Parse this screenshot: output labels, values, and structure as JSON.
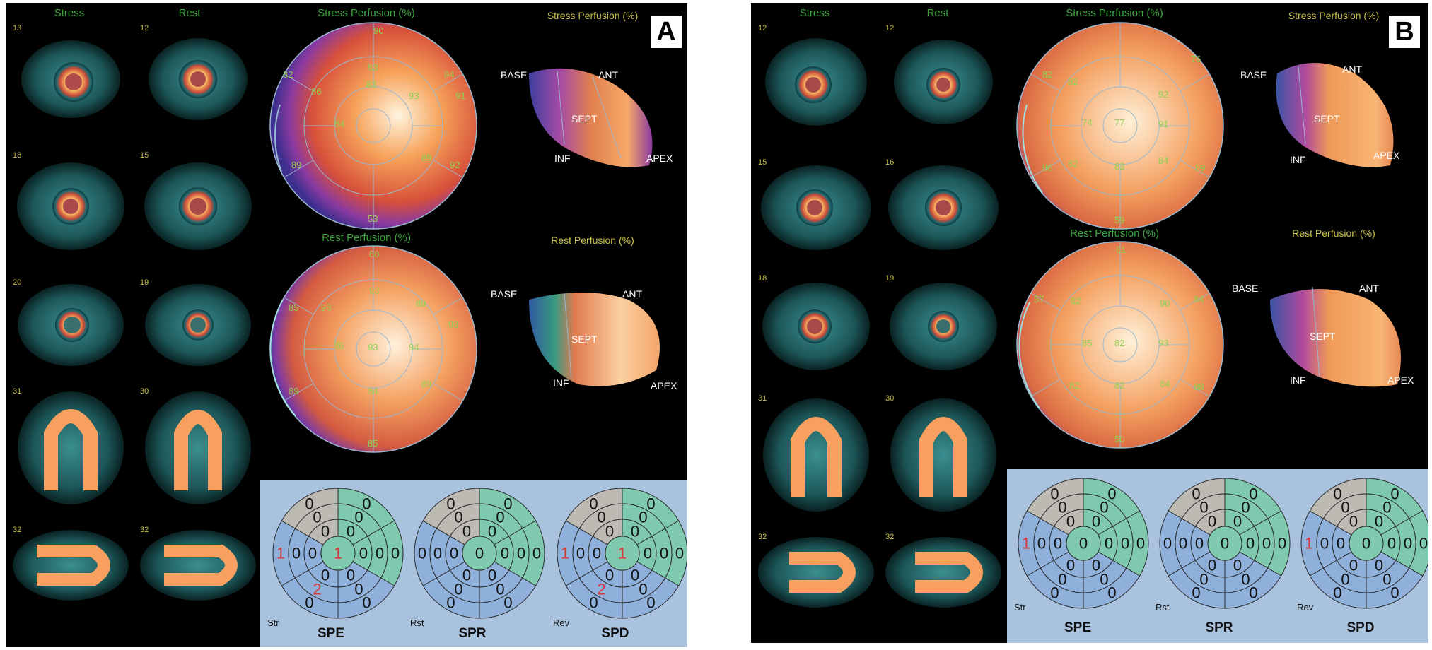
{
  "panels": [
    {
      "letter": "A",
      "columns": {
        "stress": "Stress",
        "rest": "Rest"
      },
      "slice_numbers": {
        "stress": [
          "13",
          "18",
          "20",
          "31",
          "32"
        ],
        "rest": [
          "12",
          "15",
          "19",
          "30",
          "32"
        ]
      },
      "bullseye": {
        "stress_title": "Stress Perfusion (%)",
        "rest_title": "Rest Perfusion (%)",
        "stress_values": [
          "90",
          "83",
          "94",
          "82",
          "83",
          "93",
          "91",
          "89",
          "92",
          "86",
          "84",
          "89",
          "53"
        ],
        "rest_values": [
          "88",
          "93",
          "89",
          "86",
          "93",
          "94",
          "98",
          "84",
          "89",
          "98",
          "85",
          "89",
          "85"
        ]
      },
      "surface": {
        "stress_title": "Stress Perfusion (%)",
        "rest_title": "Rest Perfusion (%)",
        "labels": {
          "base": "BASE",
          "ant": "ANT",
          "sept": "SEPT",
          "inf": "INF",
          "apex": "APEX"
        }
      },
      "polar_maps": [
        {
          "title": "SPE",
          "sub": "Str",
          "scores": [
            "0",
            "0",
            "0",
            "0",
            "1",
            "0",
            "0",
            "0",
            "0",
            "2",
            "0",
            "0",
            "0",
            "0",
            "0",
            "0",
            "0",
            "0",
            "1",
            "0"
          ]
        },
        {
          "title": "SPR",
          "sub": "Rst",
          "scores": [
            "0",
            "0",
            "0",
            "0",
            "0",
            "0",
            "0",
            "0",
            "0",
            "0",
            "0",
            "0",
            "0",
            "0",
            "0",
            "0",
            "0",
            "0",
            "0",
            "0"
          ]
        },
        {
          "title": "SPD",
          "sub": "Rev",
          "scores": [
            "0",
            "0",
            "0",
            "0",
            "1",
            "0",
            "0",
            "0",
            "0",
            "2",
            "0",
            "0",
            "0",
            "0",
            "0",
            "0",
            "0",
            "0",
            "1",
            "0"
          ]
        }
      ]
    },
    {
      "letter": "B",
      "columns": {
        "stress": "Stress",
        "rest": "Rest"
      },
      "slice_numbers": {
        "stress": [
          "12",
          "15",
          "18",
          "31",
          "32"
        ],
        "rest": [
          "12",
          "16",
          "19",
          "30",
          "32"
        ]
      },
      "bullseye": {
        "stress_title": "Stress Perfusion (%)",
        "rest_title": "Rest Perfusion (%)",
        "stress_values": [
          "76",
          "82",
          "92",
          "74",
          "77",
          "91",
          "82",
          "84",
          "89",
          "83",
          "86",
          "82",
          "59"
        ],
        "rest_values": [
          "61",
          "82",
          "90",
          "85",
          "82",
          "93",
          "84",
          "82",
          "88",
          "82",
          "84",
          "57",
          "50"
        ]
      },
      "surface": {
        "stress_title": "Stress Perfusion (%)",
        "rest_title": "Rest Perfusion (%)",
        "labels": {
          "base": "BASE",
          "ant": "ANT",
          "sept": "SEPT",
          "inf": "INF",
          "apex": "APEX"
        }
      },
      "polar_maps": [
        {
          "title": "SPE",
          "sub": "Str",
          "scores": [
            "0",
            "0",
            "0",
            "0",
            "1",
            "0",
            "0",
            "0",
            "0",
            "0",
            "0",
            "0",
            "0",
            "0",
            "0",
            "0",
            "0",
            "0",
            "0",
            "0"
          ]
        },
        {
          "title": "SPR",
          "sub": "Rst",
          "scores": [
            "0",
            "0",
            "0",
            "0",
            "0",
            "0",
            "0",
            "0",
            "0",
            "0",
            "0",
            "0",
            "0",
            "0",
            "0",
            "0",
            "0",
            "0",
            "0",
            "0"
          ]
        },
        {
          "title": "SPD",
          "sub": "Rev",
          "scores": [
            "0",
            "0",
            "0",
            "0",
            "1",
            "0",
            "0",
            "0",
            "0",
            "0",
            "0",
            "0",
            "0",
            "0",
            "0",
            "0",
            "0",
            "0",
            "0",
            "0"
          ]
        }
      ]
    }
  ]
}
